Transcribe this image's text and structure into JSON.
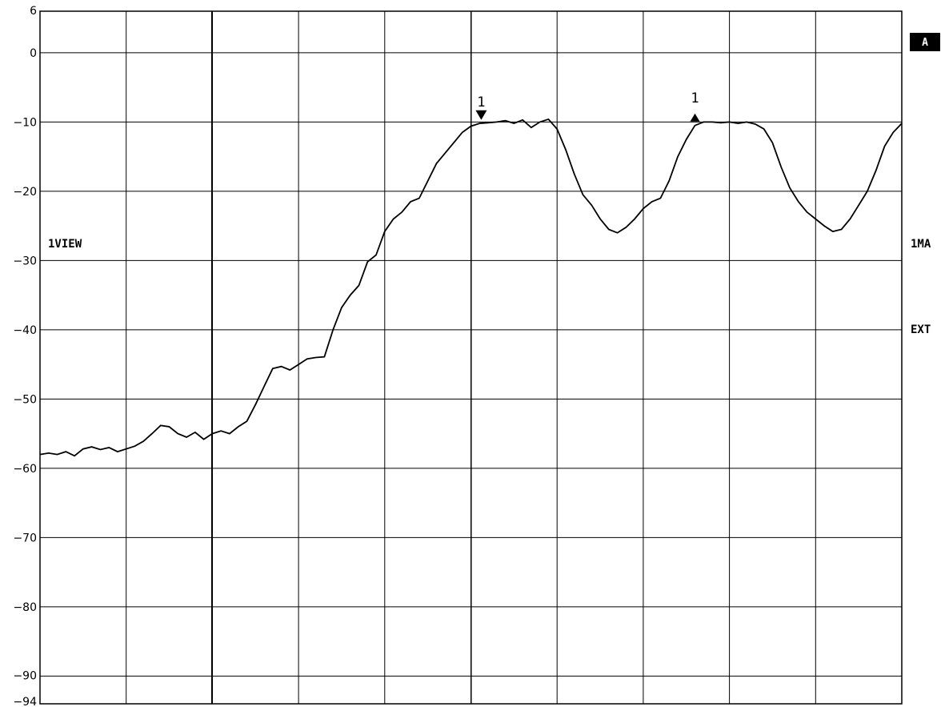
{
  "chart_data": {
    "type": "line",
    "title": "",
    "xlabel": "",
    "ylabel": "",
    "ylim": [
      -94,
      6
    ],
    "y_ticks": [
      "6",
      "0",
      "-10",
      "-20",
      "-30",
      "-40",
      "-50",
      "-60",
      "-70",
      "-80",
      "-90",
      "-94"
    ],
    "x_divisions": 10,
    "grid": true,
    "side_labels": {
      "left": "1VIEW",
      "right_ma": "1MA",
      "right_ext": "EXT",
      "trace_badge": "A"
    },
    "markers": [
      {
        "label": "1",
        "x": 5.12,
        "y": -9.7,
        "style": "down"
      },
      {
        "label": "1",
        "x": 7.6,
        "y": -9.7,
        "style": "up"
      }
    ],
    "series": [
      {
        "x": [
          0.0,
          0.1,
          0.2,
          0.3,
          0.4,
          0.5,
          0.6,
          0.7,
          0.8,
          0.9,
          1.0,
          1.1,
          1.2,
          1.3,
          1.4,
          1.5,
          1.6,
          1.7,
          1.8,
          1.9,
          2.0,
          2.1,
          2.2,
          2.3,
          2.4,
          2.5,
          2.6,
          2.7,
          2.8,
          2.9,
          3.0,
          3.1,
          3.2,
          3.3,
          3.4,
          3.5,
          3.6,
          3.7,
          3.8,
          3.9,
          4.0,
          4.1,
          4.2,
          4.3,
          4.4,
          4.5,
          4.6,
          4.7,
          4.8,
          4.9,
          5.0,
          5.1,
          5.2,
          5.3,
          5.4,
          5.5,
          5.6,
          5.7,
          5.8,
          5.9,
          6.0,
          6.1,
          6.2,
          6.3,
          6.4,
          6.5,
          6.6,
          6.7,
          6.8,
          6.9,
          7.0,
          7.1,
          7.2,
          7.3,
          7.4,
          7.5,
          7.6,
          7.7,
          7.8,
          7.9,
          8.0,
          8.1,
          8.2,
          8.3,
          8.4,
          8.5,
          8.6,
          8.7,
          8.8,
          8.9,
          9.0,
          9.1,
          9.2,
          9.3,
          9.4,
          9.5,
          9.6,
          9.7,
          9.8,
          9.9,
          10.0
        ],
        "y": [
          -58.0,
          -57.8,
          -58.0,
          -57.6,
          -58.2,
          -57.2,
          -56.9,
          -57.3,
          -57.0,
          -57.6,
          -57.2,
          -56.8,
          -56.1,
          -55.0,
          -53.8,
          -54.0,
          -55.0,
          -55.5,
          -54.8,
          -55.8,
          -55.0,
          -54.6,
          -55.0,
          -54.0,
          -53.2,
          -50.8,
          -48.2,
          -45.6,
          -45.3,
          -45.8,
          -45.0,
          -44.2,
          -44.0,
          -43.9,
          -40.0,
          -36.8,
          -35.0,
          -33.6,
          -30.2,
          -29.2,
          -25.8,
          -24.0,
          -23.0,
          -21.5,
          -21.0,
          -18.5,
          -16.0,
          -14.5,
          -13.0,
          -11.5,
          -10.6,
          -10.2,
          -10.1,
          -10.0,
          -9.8,
          -10.2,
          -9.7,
          -10.8,
          -10.0,
          -9.6,
          -11.0,
          -14.0,
          -17.5,
          -20.5,
          -22.0,
          -24.0,
          -25.5,
          -26.0,
          -25.2,
          -24.0,
          -22.5,
          -21.5,
          -21.0,
          -18.5,
          -15.0,
          -12.5,
          -10.5,
          -10.0,
          -10.0,
          -10.1,
          -10.0,
          -10.2,
          -10.0,
          -10.3,
          -11.0,
          -13.0,
          -16.5,
          -19.5,
          -21.5,
          -23.0,
          -24.0,
          -25.0,
          -25.8,
          -25.5,
          -24.0,
          -22.0,
          -20.0,
          -17.0,
          -13.5,
          -11.5,
          -10.2
        ]
      }
    ]
  }
}
